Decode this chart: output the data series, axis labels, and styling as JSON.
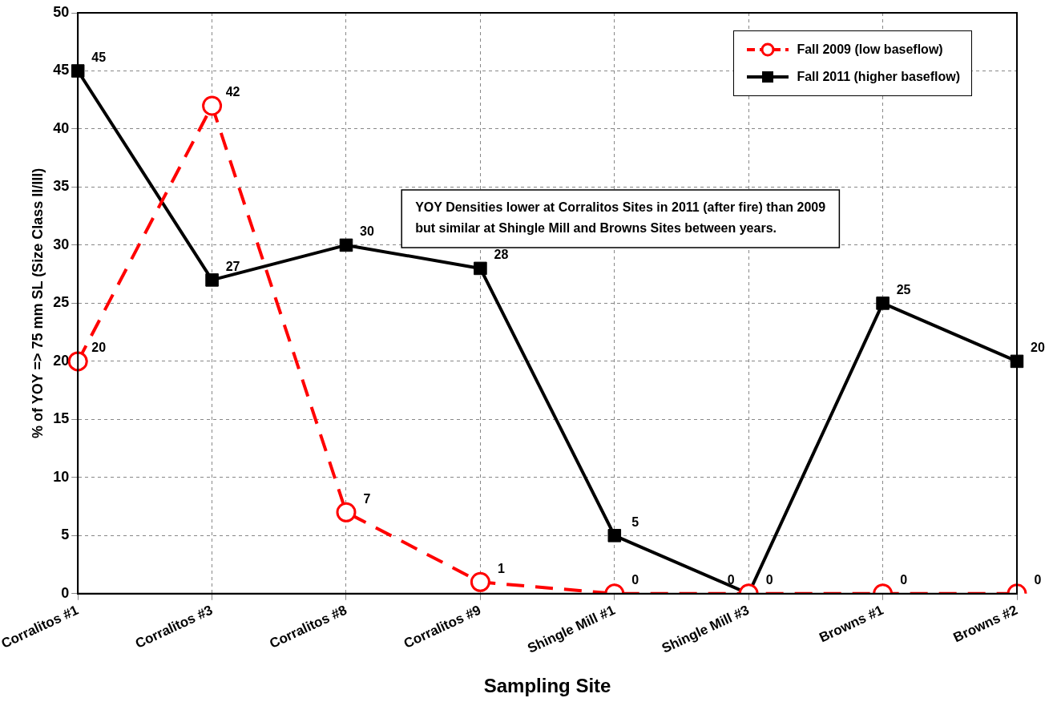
{
  "chart_data": {
    "type": "line",
    "xlabel": "Sampling Site",
    "ylabel": "% of YOY => 75 mm SL (Size Class II/III)",
    "categories": [
      "Corralitos #1",
      "Corralitos #3",
      "Corralitos #8",
      "Corralitos #9",
      "Shingle Mill #1",
      "Shingle Mill #3",
      "Browns #1",
      "Browns #2"
    ],
    "series": [
      {
        "name": "Fall 2009  (low baseflow)",
        "color": "#ff0000",
        "values": [
          20,
          42,
          7,
          1,
          0,
          0,
          0,
          0
        ],
        "marker": "circle",
        "line_style": "dashed"
      },
      {
        "name": "Fall 2011 (higher baseflow)",
        "color": "#000000",
        "values": [
          45,
          27,
          30,
          28,
          5,
          0,
          25,
          20
        ],
        "marker": "square",
        "line_style": "solid"
      }
    ],
    "ylim": [
      0,
      50
    ],
    "yticks": [
      0,
      5,
      10,
      15,
      20,
      25,
      30,
      35,
      40,
      45,
      50
    ],
    "grid": true,
    "legend": "top right",
    "data_labels": true,
    "annotations": [
      "YOY Densities lower at Corralitos Sites in 2011 (after fire) than 2009 but similar at Shingle Mill and Browns Sites between years."
    ]
  }
}
